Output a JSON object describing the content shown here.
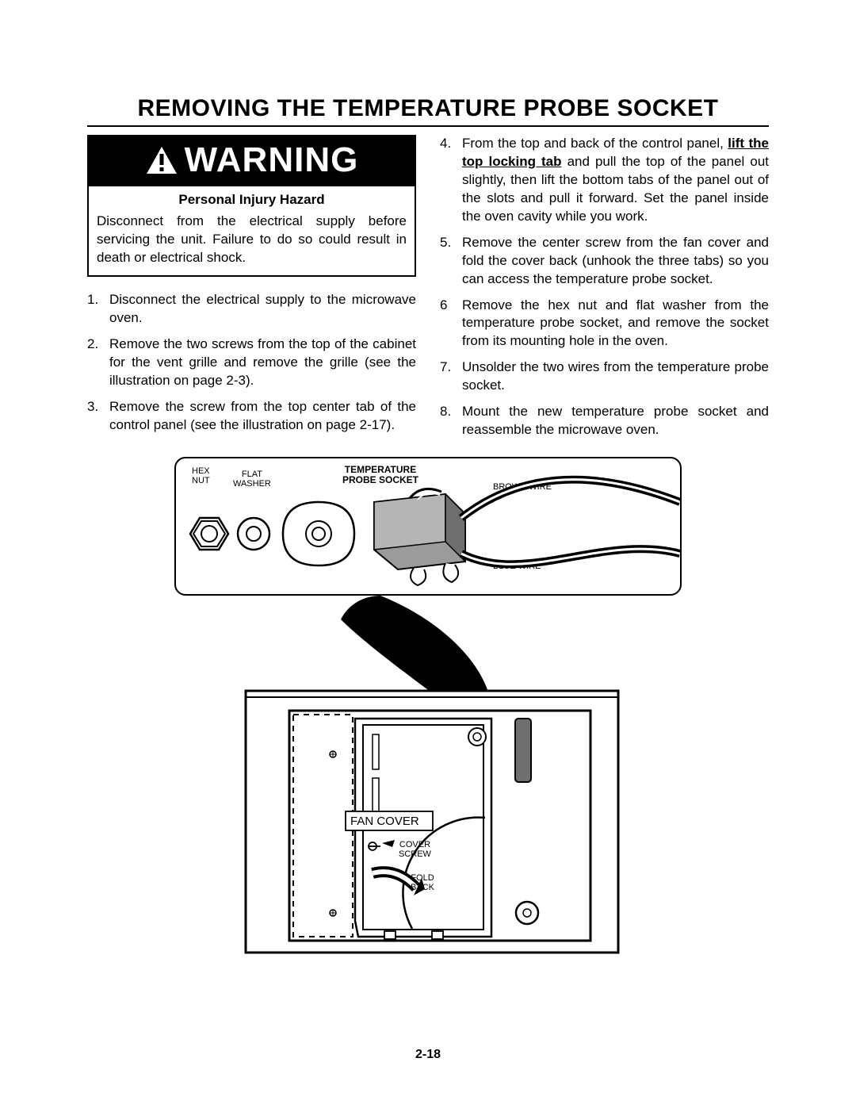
{
  "title": "REMOVING THE TEMPERATURE PROBE SOCKET",
  "warning": {
    "word": "WARNING",
    "subhead": "Personal Injury Hazard",
    "body": "Disconnect from the electrical supply before servicing the unit. Failure to do so could result in death or electrical shock."
  },
  "left_steps": [
    {
      "n": "1.",
      "text": "Disconnect the electrical supply to the microwave oven."
    },
    {
      "n": "2.",
      "text": "Remove the two screws from the top of the cabinet for the vent grille and remove the grille (see the illustration on page 2-3)."
    },
    {
      "n": "3.",
      "text": "Remove the screw from the top center tab of the control panel (see the illustration on page 2-17)."
    }
  ],
  "right_steps": [
    {
      "n": "4.",
      "pre": "From the top and back of the control panel, ",
      "u": "lift the top locking tab",
      "post": " and pull the top of the panel out slightly, then lift the bottom tabs of the panel out of the slots and pull it forward. Set the panel inside the oven cavity while you work."
    },
    {
      "n": "5.",
      "text": "Remove the center screw from the fan cover and fold the cover back (unhook the three tabs) so you can access the temperature probe socket."
    },
    {
      "n": "6",
      "text": "Remove the hex nut and flat washer from the temperature probe socket, and remove the socket from its mounting hole in the oven."
    },
    {
      "n": "7.",
      "text": "Unsolder the two wires from the temperature probe socket."
    },
    {
      "n": "8.",
      "text": "Mount the new temperature probe socket and reassemble the microwave oven."
    }
  ],
  "labels": {
    "hex_nut": "HEX\nNUT",
    "flat_washer": "FLAT\nWASHER",
    "temp_probe": "TEMPERATURE\nPROBE SOCKET",
    "brown_wire": "BROWN WIRE",
    "blue_wire": "BLUE WIRE",
    "fan_cover": "FAN COVER",
    "cover_screw": "COVER\nSCREW",
    "fold_back": "FOLD\nBACK"
  },
  "page_number": "2-18",
  "colors": {
    "socket_fill": "#9b9b9b",
    "socket_shadow": "#6f6f6f",
    "line": "#000000"
  }
}
